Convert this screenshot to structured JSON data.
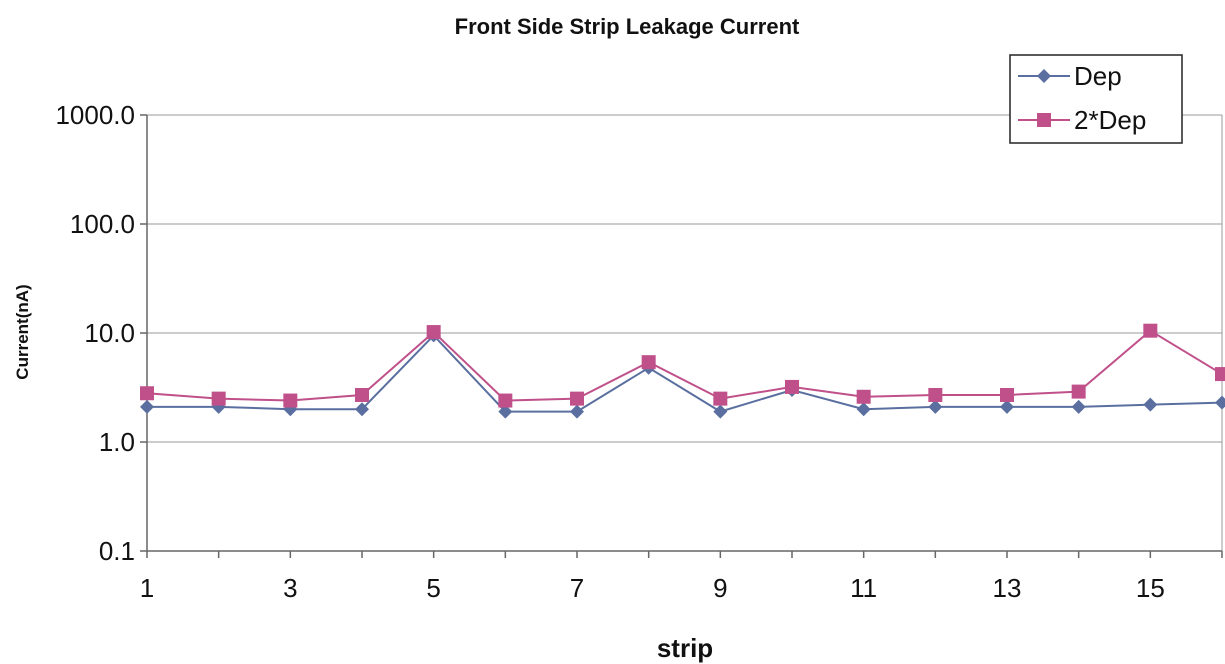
{
  "chart_data": {
    "type": "line",
    "title": "Front Side Strip Leakage Current",
    "xlabel": "strip",
    "ylabel": "Current(nA)",
    "y_scale": "log",
    "ylim": [
      0.1,
      1000
    ],
    "xlim": [
      1,
      16
    ],
    "y_ticks": [
      "1000.0",
      "100.0",
      "10.0",
      "1.0",
      "0.1"
    ],
    "x_ticks": [
      "1",
      "3",
      "5",
      "7",
      "9",
      "11",
      "13",
      "15"
    ],
    "grid": "horizontal",
    "legend_position": "top-right",
    "x": [
      1,
      2,
      3,
      4,
      5,
      6,
      7,
      8,
      9,
      10,
      11,
      12,
      13,
      14,
      15,
      16
    ],
    "series": [
      {
        "name": "Dep",
        "color": "#5a6fa0",
        "marker": "diamond",
        "values": [
          2.1,
          2.1,
          2.0,
          2.0,
          9.5,
          1.9,
          1.9,
          4.8,
          1.9,
          3.0,
          2.0,
          2.1,
          2.1,
          2.1,
          2.2,
          2.3
        ]
      },
      {
        "name": "2*Dep",
        "color": "#c0508a",
        "marker": "square",
        "values": [
          2.8,
          2.5,
          2.4,
          2.7,
          10.2,
          2.4,
          2.5,
          5.4,
          2.5,
          3.2,
          2.6,
          2.7,
          2.7,
          2.9,
          10.5,
          4.2
        ]
      }
    ]
  }
}
